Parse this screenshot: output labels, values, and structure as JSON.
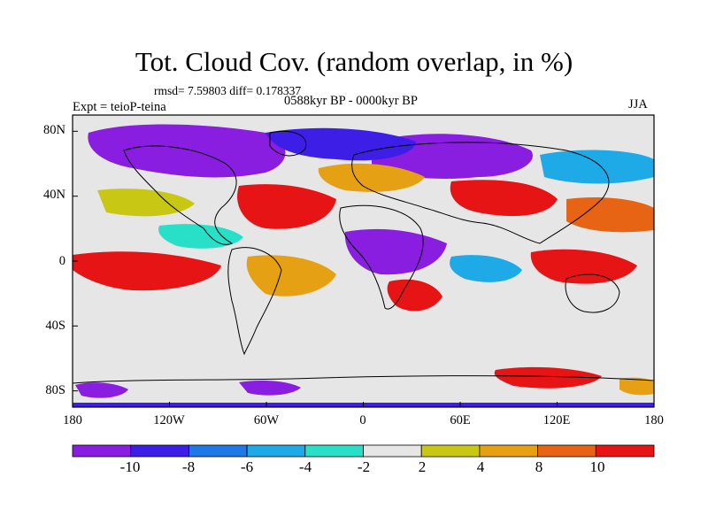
{
  "title": "Tot. Cloud Cov. (random overlap, in %)",
  "stats": "rmsd= 7.59803 diff= 0.178337",
  "experiment": "Expt = teioP-teina",
  "period": "0588kyr BP - 0000kyr BP",
  "season": "JJA",
  "map": {
    "projection": "cylindrical equidistant",
    "lon_range": [
      -180,
      180
    ],
    "lat_range": [
      -90,
      90
    ],
    "lat_ticks": [
      "80N",
      "40N",
      "0",
      "40S",
      "80S"
    ],
    "lon_ticks": [
      "180",
      "120W",
      "60W",
      "0",
      "60E",
      "120E",
      "180"
    ],
    "field": "cloud cover difference (%)"
  },
  "colorbar": {
    "labels": [
      "-10",
      "-8",
      "-6",
      "-4",
      "-2",
      "2",
      "4",
      "8",
      "10"
    ],
    "colors": [
      "#8a1ee0",
      "#3c1ee6",
      "#1e78e6",
      "#1eaae6",
      "#28e0c8",
      "#e6e6e6",
      "#c8c814",
      "#e6a014",
      "#e66414",
      "#e61414"
    ]
  }
}
